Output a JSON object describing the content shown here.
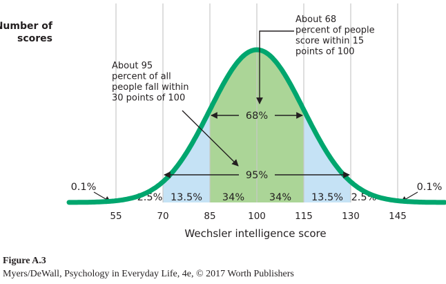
{
  "chart_data": {
    "type": "area",
    "title": "",
    "ylabel_lines": [
      "Number of",
      "scores"
    ],
    "xlabel": "Wechsler intelligence score",
    "x_ticks": [
      55,
      70,
      85,
      100,
      115,
      130,
      145
    ],
    "xlim": [
      40,
      160
    ],
    "distribution": {
      "kind": "normal",
      "mean": 100,
      "sd": 15
    },
    "gridlines": "vertical",
    "bands": [
      {
        "from": 40,
        "to": 55,
        "pct": "0.1%",
        "fill": "none"
      },
      {
        "from": 55,
        "to": 70,
        "pct": "2.5%",
        "fill": "none"
      },
      {
        "from": 70,
        "to": 85,
        "pct": "13.5%",
        "fill": "light-blue"
      },
      {
        "from": 85,
        "to": 100,
        "pct": "34%",
        "fill": "light-green"
      },
      {
        "from": 100,
        "to": 115,
        "pct": "34%",
        "fill": "light-green"
      },
      {
        "from": 115,
        "to": 130,
        "pct": "13.5%",
        "fill": "light-blue"
      },
      {
        "from": 130,
        "to": 145,
        "pct": "2.5%",
        "fill": "none"
      },
      {
        "from": 145,
        "to": 160,
        "pct": "0.1%",
        "fill": "none"
      }
    ],
    "ranges": [
      {
        "from": 85,
        "to": 115,
        "label": "68%"
      },
      {
        "from": 70,
        "to": 130,
        "label": "95%"
      }
    ],
    "annotations": [
      {
        "lines": [
          "About 68",
          "percent of people",
          "score within 15",
          "points of 100"
        ]
      },
      {
        "lines": [
          "About 95",
          "percent of all",
          "people fall within",
          "30 points of 100"
        ]
      }
    ]
  },
  "colors": {
    "curve": "#00a66e",
    "green_fill": "#abd597",
    "blue_fill": "#c5e2f5",
    "gridline": "#c8c8c8",
    "text": "#231f20"
  },
  "caption": {
    "title": "Figure A.3",
    "credit": "Myers/DeWall, Psychology in Everyday Life, 4e, © 2017 Worth Publishers"
  }
}
